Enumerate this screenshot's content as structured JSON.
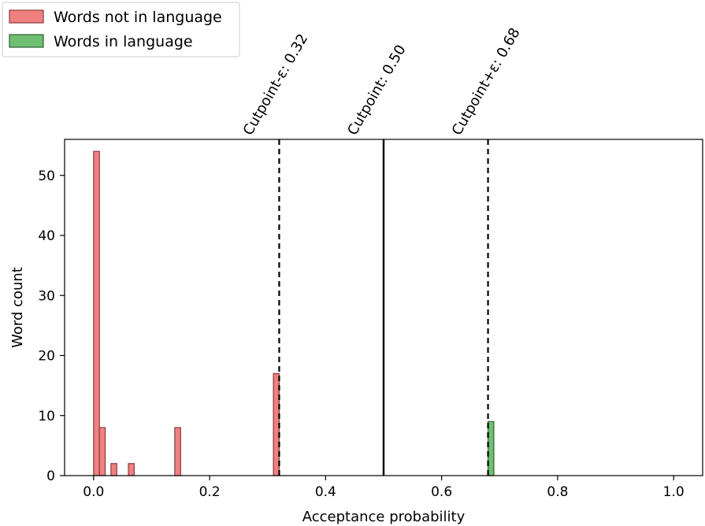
{
  "chart_data": {
    "type": "bar",
    "xlabel": "Acceptance probability",
    "ylabel": "Word count",
    "xlim": [
      -0.05,
      1.05
    ],
    "ylim": [
      0,
      56
    ],
    "xticks": [
      "0.0",
      "0.2",
      "0.4",
      "0.6",
      "0.8",
      "1.0"
    ],
    "yticks": [
      "0",
      "10",
      "20",
      "30",
      "40",
      "50"
    ],
    "grid": false,
    "legend_position": "top-left",
    "bin_width": 0.01,
    "series": [
      {
        "name": "Words not in language",
        "color": "#f08080",
        "edge_color": "#8b3a3a",
        "bars": [
          {
            "x": 0.005,
            "value": 54
          },
          {
            "x": 0.015,
            "value": 8
          },
          {
            "x": 0.035,
            "value": 2
          },
          {
            "x": 0.065,
            "value": 2
          },
          {
            "x": 0.145,
            "value": 8
          },
          {
            "x": 0.315,
            "value": 17
          }
        ]
      },
      {
        "name": "Words in language",
        "color": "#6fbf73",
        "edge_color": "#2f5f2f",
        "bars": [
          {
            "x": 0.685,
            "value": 9
          }
        ]
      }
    ],
    "reference_lines": [
      {
        "x": 0.32,
        "label": "Cutpoint-ε: 0.32",
        "style": "dashed"
      },
      {
        "x": 0.5,
        "label": "Cutpoint: 0.50",
        "style": "solid"
      },
      {
        "x": 0.68,
        "label": "Cutpoint+ε: 0.68",
        "style": "dashed"
      }
    ]
  }
}
